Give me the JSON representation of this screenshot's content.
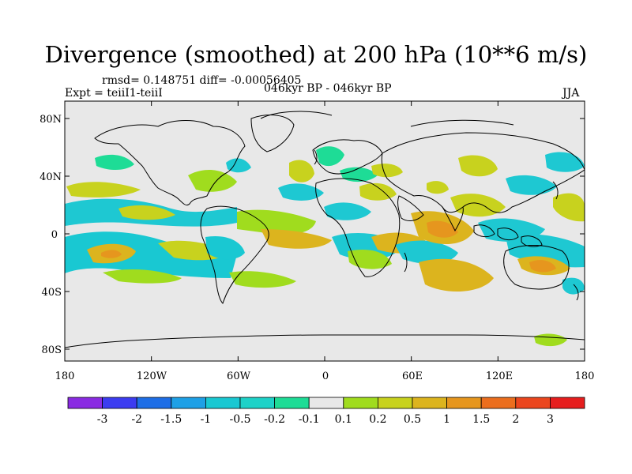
{
  "title": "Divergence (smoothed) at 200 hPa (10**6 m/s)",
  "stats": "rmsd= 0.148751 diff= -0.00056405",
  "expt": "Expt = teiiI1-teiiI",
  "period": "046kyr BP - 046kyr BP",
  "season": "JJA",
  "lat_ticks": [
    "80N",
    "40N",
    "0",
    "40S",
    "80S"
  ],
  "lon_ticks": [
    "180",
    "120W",
    "60W",
    "0",
    "60E",
    "120E",
    "180"
  ],
  "colorbar": {
    "labels": [
      "-3",
      "-2",
      "-1.5",
      "-1",
      "-0.5",
      "-0.2",
      "-0.1",
      "0.1",
      "0.2",
      "0.5",
      "1",
      "1.5",
      "2",
      "3"
    ],
    "colors": [
      "#8a2be2",
      "#3c3cf0",
      "#1e6ee6",
      "#1ea0e6",
      "#19c8d2",
      "#1ed2c8",
      "#1edc96",
      "#e8e8e8",
      "#a0dc1e",
      "#c8d21e",
      "#dcb41e",
      "#e6961e",
      "#eb6e1e",
      "#eb461e",
      "#e61e1e"
    ]
  },
  "palette": {
    "land_outline": "#000000",
    "background": "#e8e8e8"
  }
}
